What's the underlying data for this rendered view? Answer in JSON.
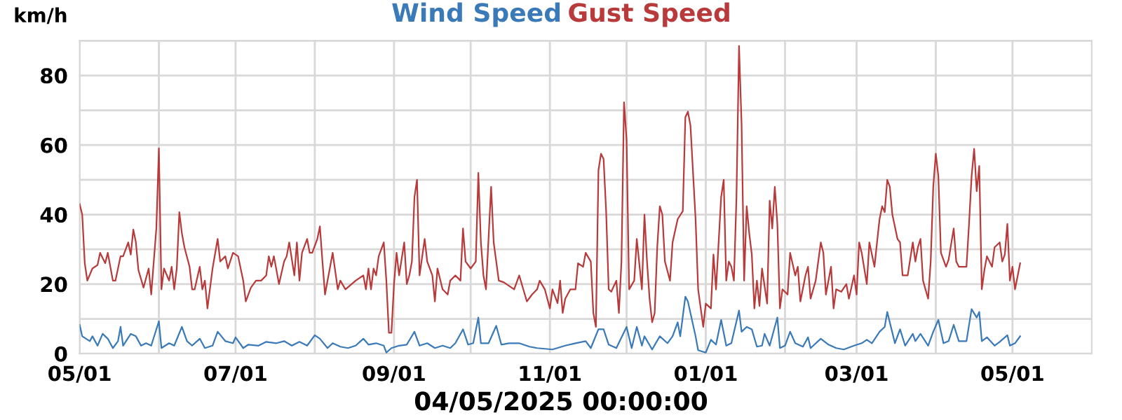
{
  "chart_data": {
    "type": "line",
    "xlabel": "04/05/2025 00:00:00",
    "ylabel": "km/h",
    "xlim": [
      "2024-05-01",
      "2025-06-01"
    ],
    "xticks": [
      {
        "value": "2024-05-01",
        "label": "05/01"
      },
      {
        "value": "2024-06-01",
        "label": null
      },
      {
        "value": "2024-07-01",
        "label": "07/01"
      },
      {
        "value": "2024-08-01",
        "label": null
      },
      {
        "value": "2024-09-01",
        "label": "09/01"
      },
      {
        "value": "2024-10-01",
        "label": null
      },
      {
        "value": "2024-11-01",
        "label": "11/01"
      },
      {
        "value": "2024-12-01",
        "label": null
      },
      {
        "value": "2025-01-01",
        "label": "01/01"
      },
      {
        "value": "2025-02-01",
        "label": null
      },
      {
        "value": "2025-03-01",
        "label": "03/01"
      },
      {
        "value": "2025-04-01",
        "label": null
      },
      {
        "value": "2025-05-01",
        "label": "05/01"
      }
    ],
    "ylim": [
      0,
      90
    ],
    "yticks": [
      0,
      {
        "value": 10,
        "label": null
      },
      20,
      {
        "value": 30,
        "label": null
      },
      40,
      {
        "value": 50,
        "label": null
      },
      60,
      {
        "value": 70,
        "label": null
      },
      80,
      {
        "value": 90,
        "label": null
      }
    ],
    "grid": true,
    "legend": "top",
    "marker": "none",
    "line_style": "solid",
    "series": [
      {
        "name": "Wind Speed",
        "color": "#3a7ab8",
        "x": [
          "2024-05-01",
          "2024-05-02",
          "2024-05-05",
          "2024-05-06",
          "2024-05-08",
          "2024-05-10",
          "2024-05-12",
          "2024-05-14",
          "2024-05-16",
          "2024-05-17",
          "2024-05-18",
          "2024-05-21",
          "2024-05-23",
          "2024-05-25",
          "2024-05-27",
          "2024-05-29",
          "2024-06-01",
          "2024-06-02",
          "2024-06-05",
          "2024-06-07",
          "2024-06-10",
          "2024-06-12",
          "2024-06-14",
          "2024-06-17",
          "2024-06-19",
          "2024-06-22",
          "2024-06-24",
          "2024-06-27",
          "2024-06-30",
          "2024-07-01",
          "2024-07-04",
          "2024-07-06",
          "2024-07-10",
          "2024-07-13",
          "2024-07-17",
          "2024-07-20",
          "2024-07-23",
          "2024-07-26",
          "2024-07-29",
          "2024-08-01",
          "2024-08-03",
          "2024-08-06",
          "2024-08-08",
          "2024-08-11",
          "2024-08-14",
          "2024-08-17",
          "2024-08-20",
          "2024-08-22",
          "2024-08-25",
          "2024-08-28",
          "2024-08-29",
          "2024-08-31",
          "2024-09-03",
          "2024-09-06",
          "2024-09-09",
          "2024-09-11",
          "2024-09-14",
          "2024-09-17",
          "2024-09-20",
          "2024-09-23",
          "2024-09-25",
          "2024-09-28",
          "2024-09-30",
          "2024-10-02",
          "2024-10-04",
          "2024-10-05",
          "2024-10-08",
          "2024-10-11",
          "2024-10-13",
          "2024-10-16",
          "2024-10-20",
          "2024-10-24",
          "2024-10-27",
          "2024-11-02",
          "2024-11-07",
          "2024-11-11",
          "2024-11-15",
          "2024-11-17",
          "2024-11-20",
          "2024-11-22",
          "2024-11-24",
          "2024-11-27",
          "2024-12-01",
          "2024-12-03",
          "2024-12-05",
          "2024-12-07",
          "2024-12-08",
          "2024-12-11",
          "2024-12-14",
          "2024-12-17",
          "2024-12-19",
          "2024-12-21",
          "2024-12-22",
          "2024-12-24",
          "2024-12-25",
          "2024-12-28",
          "2024-12-29",
          "2025-01-01",
          "2025-01-03",
          "2025-01-05",
          "2025-01-07",
          "2025-01-09",
          "2025-01-11",
          "2025-01-14",
          "2025-01-15",
          "2025-01-17",
          "2025-01-19",
          "2025-01-21",
          "2025-01-23",
          "2025-01-24",
          "2025-01-26",
          "2025-01-29",
          "2025-01-30",
          "2025-02-01",
          "2025-02-03",
          "2025-02-05",
          "2025-02-08",
          "2025-02-10",
          "2025-02-11",
          "2025-02-15",
          "2025-02-18",
          "2025-02-21",
          "2025-02-24",
          "2025-02-28",
          "2025-03-03",
          "2025-03-05",
          "2025-03-07",
          "2025-03-10",
          "2025-03-12",
          "2025-03-13",
          "2025-03-14",
          "2025-03-16",
          "2025-03-18",
          "2025-03-20",
          "2025-03-23",
          "2025-03-24",
          "2025-03-26",
          "2025-03-29",
          "2025-03-31",
          "2025-04-02",
          "2025-04-04",
          "2025-04-06",
          "2025-04-08",
          "2025-04-10",
          "2025-04-13",
          "2025-04-15",
          "2025-04-17",
          "2025-04-18",
          "2025-04-19",
          "2025-04-21",
          "2025-04-24",
          "2025-04-26",
          "2025-04-29",
          "2025-04-30",
          "2025-05-02",
          "2025-05-04"
        ],
        "values": [
          8.3,
          5,
          3.6,
          5,
          2.3,
          5.7,
          4.3,
          1.6,
          3.6,
          7.7,
          2.3,
          5.7,
          5,
          2.3,
          3,
          2.3,
          9.3,
          1.6,
          3,
          2.3,
          7.7,
          3.6,
          2.3,
          4.3,
          1.6,
          2.3,
          6.3,
          3.6,
          3,
          4.7,
          1.6,
          2.6,
          2.3,
          3.4,
          3,
          3.6,
          2.3,
          3.4,
          2.3,
          5.3,
          4.3,
          1.6,
          3,
          2,
          1.6,
          2.3,
          4.3,
          2.6,
          3,
          2.3,
          0.3,
          1.6,
          2.3,
          2.6,
          6.3,
          2.3,
          3,
          1.6,
          2.3,
          1.6,
          3,
          7,
          2.6,
          3,
          10.4,
          3,
          3,
          8,
          2.6,
          3,
          3,
          2,
          1.6,
          1.2,
          2.3,
          3,
          3.6,
          1.6,
          7,
          7,
          2.6,
          1.6,
          7.7,
          1.6,
          7.7,
          2.3,
          5,
          1.2,
          5,
          3,
          5,
          9,
          5,
          16.4,
          15,
          5,
          1,
          0.3,
          4,
          2.6,
          9.7,
          2.3,
          3,
          12.4,
          6.3,
          7.7,
          7,
          2,
          2.3,
          5.7,
          2.3,
          10.4,
          1.6,
          2.3,
          6.3,
          3,
          2,
          4.7,
          1.6,
          4.3,
          2.6,
          1.6,
          1.2,
          2.3,
          3,
          4,
          3,
          6.3,
          7.7,
          12,
          9,
          3,
          7,
          2.3,
          5.7,
          3.6,
          5.7,
          2.3,
          6.3,
          9.7,
          3,
          3.6,
          8.3,
          3.6,
          3.6,
          12.8,
          10.4,
          12,
          3.6,
          4.7,
          2.3,
          3.4,
          5.3,
          2.3,
          3,
          5
        ]
      },
      {
        "name": "Gust Speed",
        "color": "#b83a3a",
        "x": [
          "2024-05-01",
          "2024-05-02",
          "2024-05-03",
          "2024-05-04",
          "2024-05-06",
          "2024-05-08",
          "2024-05-09",
          "2024-05-11",
          "2024-05-12",
          "2024-05-14",
          "2024-05-15",
          "2024-05-17",
          "2024-05-18",
          "2024-05-20",
          "2024-05-21",
          "2024-05-22",
          "2024-05-23",
          "2024-05-24",
          "2024-05-26",
          "2024-05-28",
          "2024-05-29",
          "2024-05-31",
          "2024-06-01",
          "2024-06-02",
          "2024-06-03",
          "2024-06-05",
          "2024-06-06",
          "2024-06-07",
          "2024-06-08",
          "2024-06-09",
          "2024-06-10",
          "2024-06-11",
          "2024-06-13",
          "2024-06-14",
          "2024-06-15",
          "2024-06-17",
          "2024-06-18",
          "2024-06-19",
          "2024-06-20",
          "2024-06-22",
          "2024-06-24",
          "2024-06-25",
          "2024-06-27",
          "2024-06-28",
          "2024-06-30",
          "2024-07-02",
          "2024-07-04",
          "2024-07-05",
          "2024-07-07",
          "2024-07-09",
          "2024-07-11",
          "2024-07-13",
          "2024-07-14",
          "2024-07-15",
          "2024-07-16",
          "2024-07-18",
          "2024-07-20",
          "2024-07-21",
          "2024-07-22",
          "2024-07-24",
          "2024-07-25",
          "2024-07-26",
          "2024-07-27",
          "2024-07-29",
          "2024-07-30",
          "2024-07-31",
          "2024-08-02",
          "2024-08-03",
          "2024-08-04",
          "2024-08-05",
          "2024-08-07",
          "2024-08-08",
          "2024-08-10",
          "2024-08-11",
          "2024-08-13",
          "2024-08-17",
          "2024-08-20",
          "2024-08-21",
          "2024-08-22",
          "2024-08-23",
          "2024-08-24",
          "2024-08-25",
          "2024-08-26",
          "2024-08-28",
          "2024-08-29",
          "2024-08-30",
          "2024-08-31",
          "2024-09-01",
          "2024-09-02",
          "2024-09-03",
          "2024-09-05",
          "2024-09-06",
          "2024-09-07",
          "2024-09-08",
          "2024-09-09",
          "2024-09-10",
          "2024-09-11",
          "2024-09-13",
          "2024-09-14",
          "2024-09-16",
          "2024-09-17",
          "2024-09-18",
          "2024-09-20",
          "2024-09-22",
          "2024-09-23",
          "2024-09-25",
          "2024-09-27",
          "2024-09-28",
          "2024-09-29",
          "2024-10-01",
          "2024-10-03",
          "2024-10-04",
          "2024-10-05",
          "2024-10-06",
          "2024-10-07",
          "2024-10-09",
          "2024-10-10",
          "2024-10-12",
          "2024-10-14",
          "2024-10-18",
          "2024-10-20",
          "2024-10-23",
          "2024-10-25",
          "2024-10-27",
          "2024-10-28",
          "2024-10-30",
          "2024-11-01",
          "2024-11-02",
          "2024-11-04",
          "2024-11-05",
          "2024-11-06",
          "2024-11-07",
          "2024-11-09",
          "2024-11-11",
          "2024-11-12",
          "2024-11-14",
          "2024-11-15",
          "2024-11-17",
          "2024-11-18",
          "2024-11-19",
          "2024-11-20",
          "2024-11-21",
          "2024-11-22",
          "2024-11-23",
          "2024-11-24",
          "2024-11-25",
          "2024-11-27",
          "2024-11-28",
          "2024-11-29",
          "2024-11-30",
          "2024-12-01",
          "2024-12-02",
          "2024-12-04",
          "2024-12-05",
          "2024-12-07",
          "2024-12-08",
          "2024-12-09",
          "2024-12-10",
          "2024-12-11",
          "2024-12-12",
          "2024-12-13",
          "2024-12-14",
          "2024-12-15",
          "2024-12-16",
          "2024-12-18",
          "2024-12-19",
          "2024-12-21",
          "2024-12-23",
          "2024-12-24",
          "2024-12-25",
          "2024-12-26",
          "2024-12-28",
          "2024-12-29",
          "2024-12-31",
          "2025-01-01",
          "2025-01-03",
          "2025-01-04",
          "2025-01-05",
          "2025-01-07",
          "2025-01-08",
          "2025-01-09",
          "2025-01-10",
          "2025-01-11",
          "2025-01-12",
          "2025-01-13",
          "2025-01-14",
          "2025-01-15",
          "2025-01-16",
          "2025-01-17",
          "2025-01-18",
          "2025-01-19",
          "2025-01-20",
          "2025-01-21",
          "2025-01-22",
          "2025-01-23",
          "2025-01-25",
          "2025-01-26",
          "2025-01-27",
          "2025-01-28",
          "2025-01-29",
          "2025-01-30",
          "2025-01-31",
          "2025-02-02",
          "2025-02-03",
          "2025-02-05",
          "2025-02-06",
          "2025-02-07",
          "2025-02-09",
          "2025-02-10",
          "2025-02-11",
          "2025-02-13",
          "2025-02-15",
          "2025-02-16",
          "2025-02-17",
          "2025-02-19",
          "2025-02-20",
          "2025-02-21",
          "2025-02-23",
          "2025-02-25",
          "2025-02-26",
          "2025-02-28",
          "2025-03-01",
          "2025-03-02",
          "2025-03-03",
          "2025-03-05",
          "2025-03-06",
          "2025-03-08",
          "2025-03-09",
          "2025-03-10",
          "2025-03-11",
          "2025-03-12",
          "2025-03-13",
          "2025-03-14",
          "2025-03-15",
          "2025-03-17",
          "2025-03-18",
          "2025-03-19",
          "2025-03-21",
          "2025-03-23",
          "2025-03-24",
          "2025-03-25",
          "2025-03-26",
          "2025-03-27",
          "2025-03-29",
          "2025-03-30",
          "2025-03-31",
          "2025-04-01",
          "2025-04-02",
          "2025-04-03",
          "2025-04-05",
          "2025-04-06",
          "2025-04-08",
          "2025-04-09",
          "2025-04-10",
          "2025-04-13",
          "2025-04-14",
          "2025-04-15",
          "2025-04-16",
          "2025-04-17",
          "2025-04-18",
          "2025-04-19",
          "2025-04-20",
          "2025-04-21",
          "2025-04-23",
          "2025-04-24",
          "2025-04-26",
          "2025-04-27",
          "2025-04-28",
          "2025-04-29",
          "2025-04-30",
          "2025-05-01",
          "2025-05-02",
          "2025-05-04"
        ],
        "values": [
          43,
          40,
          26,
          21,
          24.5,
          25.5,
          29,
          26,
          29,
          21,
          21,
          28,
          28,
          32,
          28.5,
          35.7,
          32,
          24,
          19,
          24.5,
          17,
          36,
          59,
          18.5,
          24.5,
          21,
          25,
          18.5,
          24.5,
          40.7,
          34.6,
          30.6,
          25,
          18.5,
          18.5,
          25,
          18.5,
          21,
          13,
          24.5,
          33,
          26.5,
          28,
          24.5,
          29,
          28,
          21,
          15,
          19,
          21,
          21,
          22.5,
          28,
          25,
          28,
          20,
          26.5,
          28,
          32,
          22.5,
          32,
          21,
          29,
          33,
          29,
          29,
          33,
          36.6,
          26.5,
          17,
          25,
          29,
          18.5,
          21,
          18.5,
          21,
          22.5,
          18.5,
          24.5,
          18.5,
          24.5,
          22.5,
          28,
          32,
          21,
          6,
          6,
          20,
          29,
          22.5,
          32,
          20,
          22.5,
          26.5,
          45,
          50,
          22.5,
          33,
          26.5,
          22.5,
          15,
          24.5,
          18.5,
          17,
          21,
          22.5,
          21,
          36,
          26.5,
          24.5,
          26.5,
          52,
          32,
          22.5,
          18.5,
          48,
          32,
          21,
          20.5,
          18.5,
          22.5,
          15,
          17,
          18.5,
          21,
          18.5,
          13,
          18.5,
          14.5,
          21,
          11.7,
          15.8,
          18.5,
          18.5,
          26,
          25,
          29,
          26.5,
          11.7,
          7.7,
          52.8,
          57.5,
          56,
          41,
          18.5,
          17.8,
          21,
          11.7,
          26.5,
          72.3,
          61.5,
          18.5,
          21,
          33,
          18.5,
          40,
          26.5,
          15.8,
          9,
          11.7,
          30.6,
          42.4,
          40,
          26.5,
          21,
          32,
          38.7,
          41,
          68,
          69.6,
          65.6,
          38.7,
          18.5,
          7.7,
          14.4,
          13,
          28.5,
          18.5,
          45,
          50,
          21,
          26.5,
          25,
          21,
          45,
          88.5,
          66,
          21,
          42.4,
          34.6,
          28.5,
          13,
          21,
          13.7,
          24.5,
          14.4,
          44,
          36,
          48,
          37.3,
          13,
          18.5,
          17,
          29,
          22.5,
          25,
          15,
          22.5,
          25,
          15.8,
          21,
          32,
          29,
          17,
          25,
          13,
          18.5,
          17.8,
          20,
          15.8,
          22.5,
          17,
          32,
          29,
          20,
          32,
          25,
          32,
          38.7,
          42.4,
          40.7,
          50,
          48,
          40,
          33,
          32,
          22.5,
          22.5,
          32,
          26.5,
          30.6,
          33,
          21,
          15.8,
          26.5,
          48,
          57.5,
          51,
          29,
          25,
          27,
          36,
          26.5,
          25,
          25,
          37.3,
          51,
          58.9,
          46.7,
          54,
          18.5,
          24,
          28,
          25,
          30.6,
          32,
          26.5,
          28.5,
          37.3,
          21,
          25,
          18.5,
          26
        ]
      }
    ]
  }
}
